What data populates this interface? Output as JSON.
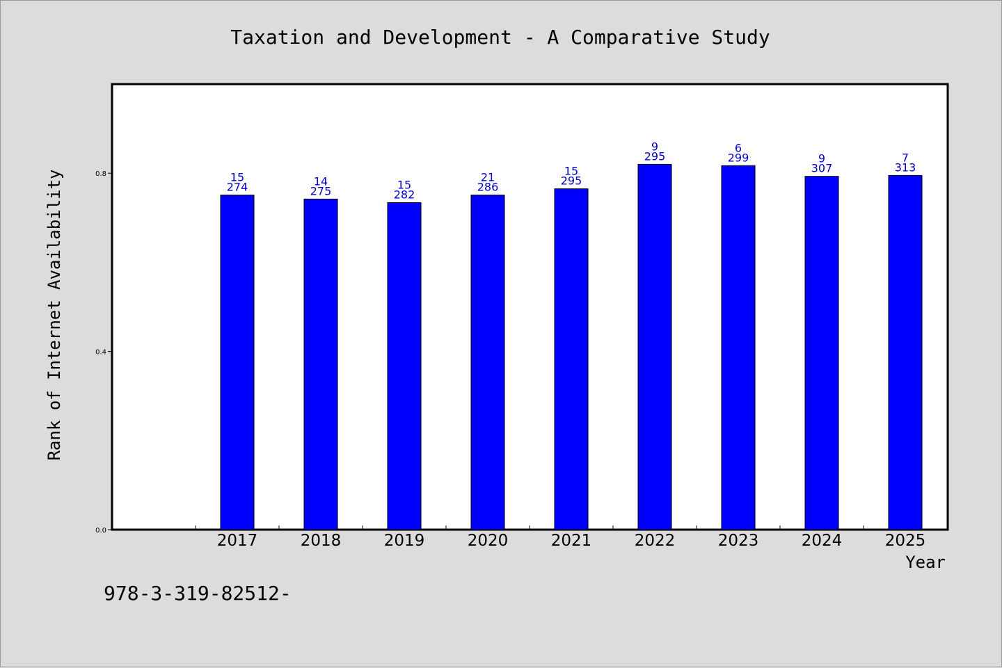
{
  "colors": {
    "background": "#dcdcdc",
    "plot_background": "#ffffff",
    "bar_fill": "#0000ff",
    "bar_stroke": "#000000",
    "data_label": "#0000cc"
  },
  "footer": {
    "text": "978-3-319-82512-"
  },
  "chart_data": {
    "type": "bar",
    "title": "Taxation and Development - A Comparative Study",
    "xlabel": "Year",
    "ylabel": "Rank of Internet Availability",
    "categories": [
      "2017",
      "2018",
      "2019",
      "2020",
      "2021",
      "2022",
      "2023",
      "2024",
      "2025"
    ],
    "values": [
      0.751,
      0.742,
      0.734,
      0.751,
      0.765,
      0.82,
      0.817,
      0.793,
      0.795
    ],
    "labels_top": [
      "15",
      "14",
      "15",
      "21",
      "15",
      "9",
      "6",
      "9",
      "7"
    ],
    "labels_bottom": [
      "274",
      "275",
      "282",
      "286",
      "295",
      "295",
      "299",
      "307",
      "313"
    ],
    "ylim": [
      0,
      1.0
    ],
    "yticks": [
      "0.0",
      "0.4",
      "0.8"
    ],
    "ytick_values": [
      0.0,
      0.4,
      0.8
    ],
    "grid": false,
    "legend": "none"
  }
}
